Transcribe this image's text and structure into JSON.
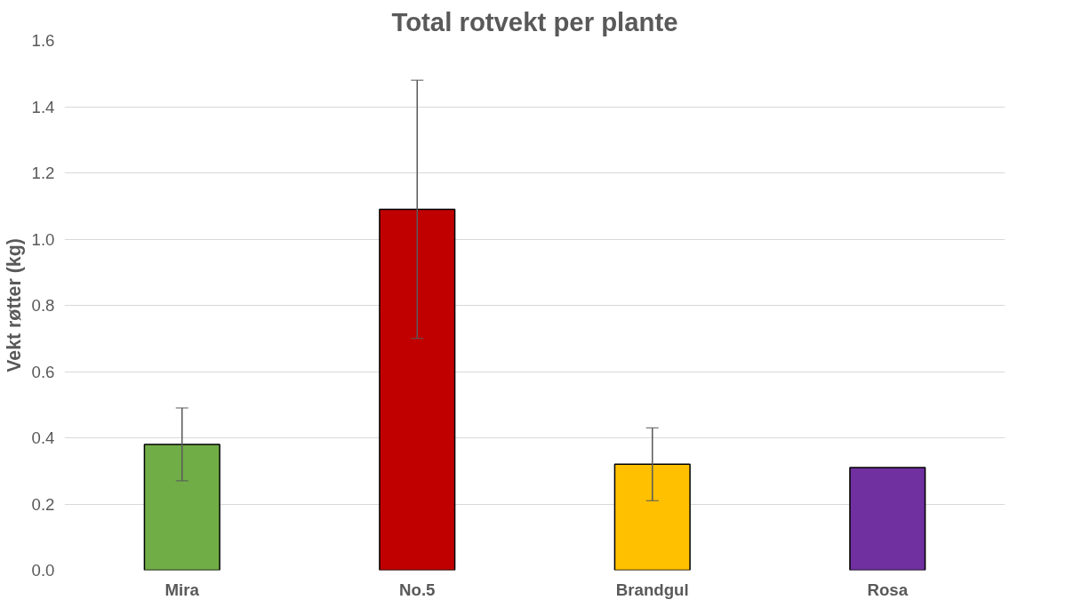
{
  "chart_data": {
    "type": "bar",
    "title": "Total rotvekt per plante",
    "ylabel": "Vekt røtter (kg)",
    "categories": [
      "Mira",
      "No.5",
      "Brandgul",
      "Rosa"
    ],
    "values": [
      0.38,
      1.09,
      0.32,
      0.31
    ],
    "colors": [
      "#70ad47",
      "#c00000",
      "#ffc000",
      "#7030a0"
    ],
    "errors": [
      0.11,
      0.39,
      0.11,
      null
    ],
    "ylim": [
      0,
      1.6
    ],
    "yticks": [
      {
        "value": 0,
        "label": "0.0"
      },
      {
        "value": 0.2,
        "label": "0.2"
      },
      {
        "value": 0.4,
        "label": "0.4"
      },
      {
        "value": 0.6,
        "label": "0.6"
      },
      {
        "value": 0.8,
        "label": "0.8"
      },
      {
        "value": 1.0,
        "label": "1.0"
      },
      {
        "value": 1.2,
        "label": "1.2"
      },
      {
        "value": 1.4,
        "label": "1.4"
      },
      {
        "value": 1.6,
        "label": "1.6"
      }
    ],
    "grid": "y"
  }
}
